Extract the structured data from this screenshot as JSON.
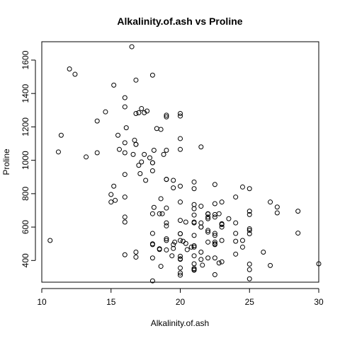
{
  "chart_data": {
    "type": "scatter",
    "title": "Alkalinity.of.ash vs Proline",
    "xlabel": "Alkalinity.of.ash",
    "ylabel": "Proline",
    "xlim": [
      10,
      30
    ],
    "ylim": [
      270,
      1710
    ],
    "x_ticks": [
      10,
      15,
      20,
      25,
      30
    ],
    "y_ticks": [
      400,
      600,
      800,
      1000,
      1200,
      1400,
      1600
    ],
    "grid": false,
    "marker": "open-circle",
    "points": [
      [
        15.6,
        1065
      ],
      [
        11.2,
        1050
      ],
      [
        18.6,
        1185
      ],
      [
        16.8,
        1480
      ],
      [
        21.0,
        735
      ],
      [
        15.2,
        1450
      ],
      [
        14.6,
        1290
      ],
      [
        17.6,
        1295
      ],
      [
        14.0,
        1045
      ],
      [
        16.0,
        1045
      ],
      [
        18.0,
        1510
      ],
      [
        16.8,
        1280
      ],
      [
        16.0,
        1320
      ],
      [
        11.4,
        1150
      ],
      [
        12.0,
        1547
      ],
      [
        17.2,
        1310
      ],
      [
        20.0,
        1280
      ],
      [
        20.0,
        1130
      ],
      [
        16.5,
        1680
      ],
      [
        15.2,
        845
      ],
      [
        16.0,
        780
      ],
      [
        18.6,
        770
      ],
      [
        16.6,
        1035
      ],
      [
        17.8,
        1015
      ],
      [
        20.0,
        845
      ],
      [
        25.0,
        830
      ],
      [
        16.1,
        1195
      ],
      [
        17.0,
        1285
      ],
      [
        16.0,
        915
      ],
      [
        18.8,
        1035
      ],
      [
        17.4,
        1285
      ],
      [
        12.4,
        1515
      ],
      [
        17.2,
        990
      ],
      [
        14.0,
        1235
      ],
      [
        16.8,
        1095
      ],
      [
        17.1,
        920
      ],
      [
        17.5,
        880
      ],
      [
        16.0,
        1105
      ],
      [
        13.2,
        1020
      ],
      [
        15.3,
        760
      ],
      [
        15.0,
        795
      ],
      [
        17.4,
        1035
      ],
      [
        16.8,
        1095
      ],
      [
        18.7,
        680
      ],
      [
        19.0,
        885
      ],
      [
        21.5,
        1080
      ],
      [
        20.0,
        1065
      ],
      [
        18.0,
        985
      ],
      [
        19.0,
        1060
      ],
      [
        19.0,
        1260
      ],
      [
        15.5,
        1150
      ],
      [
        20.0,
        1265
      ],
      [
        18.3,
        1190
      ],
      [
        16.0,
        1375
      ],
      [
        18.1,
        1060
      ],
      [
        16.7,
        1120
      ],
      [
        17.0,
        970
      ],
      [
        19.0,
        1270
      ],
      [
        10.6,
        520
      ],
      [
        16.8,
        450
      ],
      [
        20.4,
        630
      ],
      [
        16.8,
        420
      ],
      [
        20.0,
        355
      ],
      [
        22.0,
        678
      ],
      [
        20.4,
        502
      ],
      [
        19.6,
        510
      ],
      [
        15.0,
        750
      ],
      [
        18.1,
        718
      ],
      [
        21.0,
        870
      ],
      [
        20.0,
        410
      ],
      [
        19.5,
        472
      ],
      [
        18.0,
        985
      ],
      [
        19.0,
        886
      ],
      [
        19.4,
        428
      ],
      [
        23.0,
        392
      ],
      [
        22.5,
        500
      ],
      [
        26.5,
        750
      ],
      [
        19.0,
        463
      ],
      [
        18.0,
        278
      ],
      [
        19.0,
        714
      ],
      [
        16.0,
        630
      ],
      [
        20.2,
        515
      ],
      [
        19.0,
        520
      ],
      [
        21.5,
        450
      ],
      [
        19.5,
        495
      ],
      [
        22.5,
        562
      ],
      [
        18.0,
        680
      ],
      [
        21.5,
        625
      ],
      [
        20.8,
        480
      ],
      [
        26.0,
        450
      ],
      [
        22.5,
        495
      ],
      [
        25.0,
        290
      ],
      [
        21.0,
        345
      ],
      [
        18.0,
        937
      ],
      [
        21.0,
        625
      ],
      [
        21.0,
        428
      ],
      [
        16.0,
        660
      ],
      [
        21.5,
        406
      ],
      [
        21.0,
        710
      ],
      [
        24.0,
        562
      ],
      [
        24.0,
        438
      ],
      [
        18.0,
        415
      ],
      [
        21.0,
        672
      ],
      [
        22.5,
        315
      ],
      [
        22.5,
        510
      ],
      [
        21.0,
        488
      ],
      [
        20.0,
        312
      ],
      [
        22.8,
        680
      ],
      [
        18.0,
        562
      ],
      [
        20.0,
        325
      ],
      [
        19.0,
        607
      ],
      [
        16.0,
        434
      ],
      [
        22.8,
        385
      ],
      [
        20.0,
        407
      ],
      [
        18.0,
        495
      ],
      [
        25.0,
        345
      ],
      [
        21.6,
        372
      ],
      [
        28.5,
        564
      ],
      [
        19.0,
        625
      ],
      [
        20.5,
        465
      ],
      [
        18.6,
        365
      ],
      [
        30.0,
        380
      ],
      [
        21.0,
        380
      ],
      [
        25.0,
        378
      ],
      [
        21.0,
        352
      ],
      [
        18.5,
        466
      ],
      [
        21.0,
        342
      ],
      [
        22.0,
        580
      ],
      [
        21.0,
        630
      ],
      [
        19.0,
        530
      ],
      [
        20.0,
        560
      ],
      [
        23.0,
        600
      ],
      [
        23.5,
        650
      ],
      [
        28.5,
        695
      ],
      [
        27.0,
        720
      ],
      [
        24.0,
        515
      ],
      [
        25.0,
        580
      ],
      [
        25.0,
        590
      ],
      [
        21.5,
        600
      ],
      [
        24.0,
        780
      ],
      [
        23.0,
        520
      ],
      [
        21.0,
        550
      ],
      [
        22.5,
        855
      ],
      [
        21.0,
        830
      ],
      [
        22.5,
        415
      ],
      [
        24.0,
        625
      ],
      [
        22.0,
        650
      ],
      [
        22.5,
        550
      ],
      [
        18.0,
        500
      ],
      [
        21.0,
        480
      ],
      [
        20.0,
        425
      ],
      [
        25.0,
        675
      ],
      [
        20.0,
        640
      ],
      [
        21.5,
        725
      ],
      [
        24.5,
        480
      ],
      [
        19.5,
        880
      ],
      [
        22.5,
        660
      ],
      [
        23.0,
        620
      ],
      [
        20.0,
        520
      ],
      [
        18.5,
        680
      ],
      [
        22.0,
        570
      ],
      [
        22.5,
        675
      ],
      [
        23.0,
        615
      ],
      [
        24.5,
        520
      ],
      [
        25.0,
        695
      ],
      [
        27.0,
        685
      ],
      [
        20.0,
        750
      ],
      [
        22.0,
        510
      ],
      [
        18.5,
        470
      ],
      [
        22.0,
        660
      ],
      [
        22.5,
        740
      ],
      [
        23.0,
        750
      ],
      [
        19.5,
        835
      ],
      [
        24.5,
        840
      ],
      [
        25.0,
        560
      ],
      [
        20.0,
        560
      ],
      [
        21.5,
        600
      ],
      [
        22.0,
        680
      ],
      [
        22.0,
        415
      ],
      [
        26.5,
        370
      ]
    ]
  }
}
